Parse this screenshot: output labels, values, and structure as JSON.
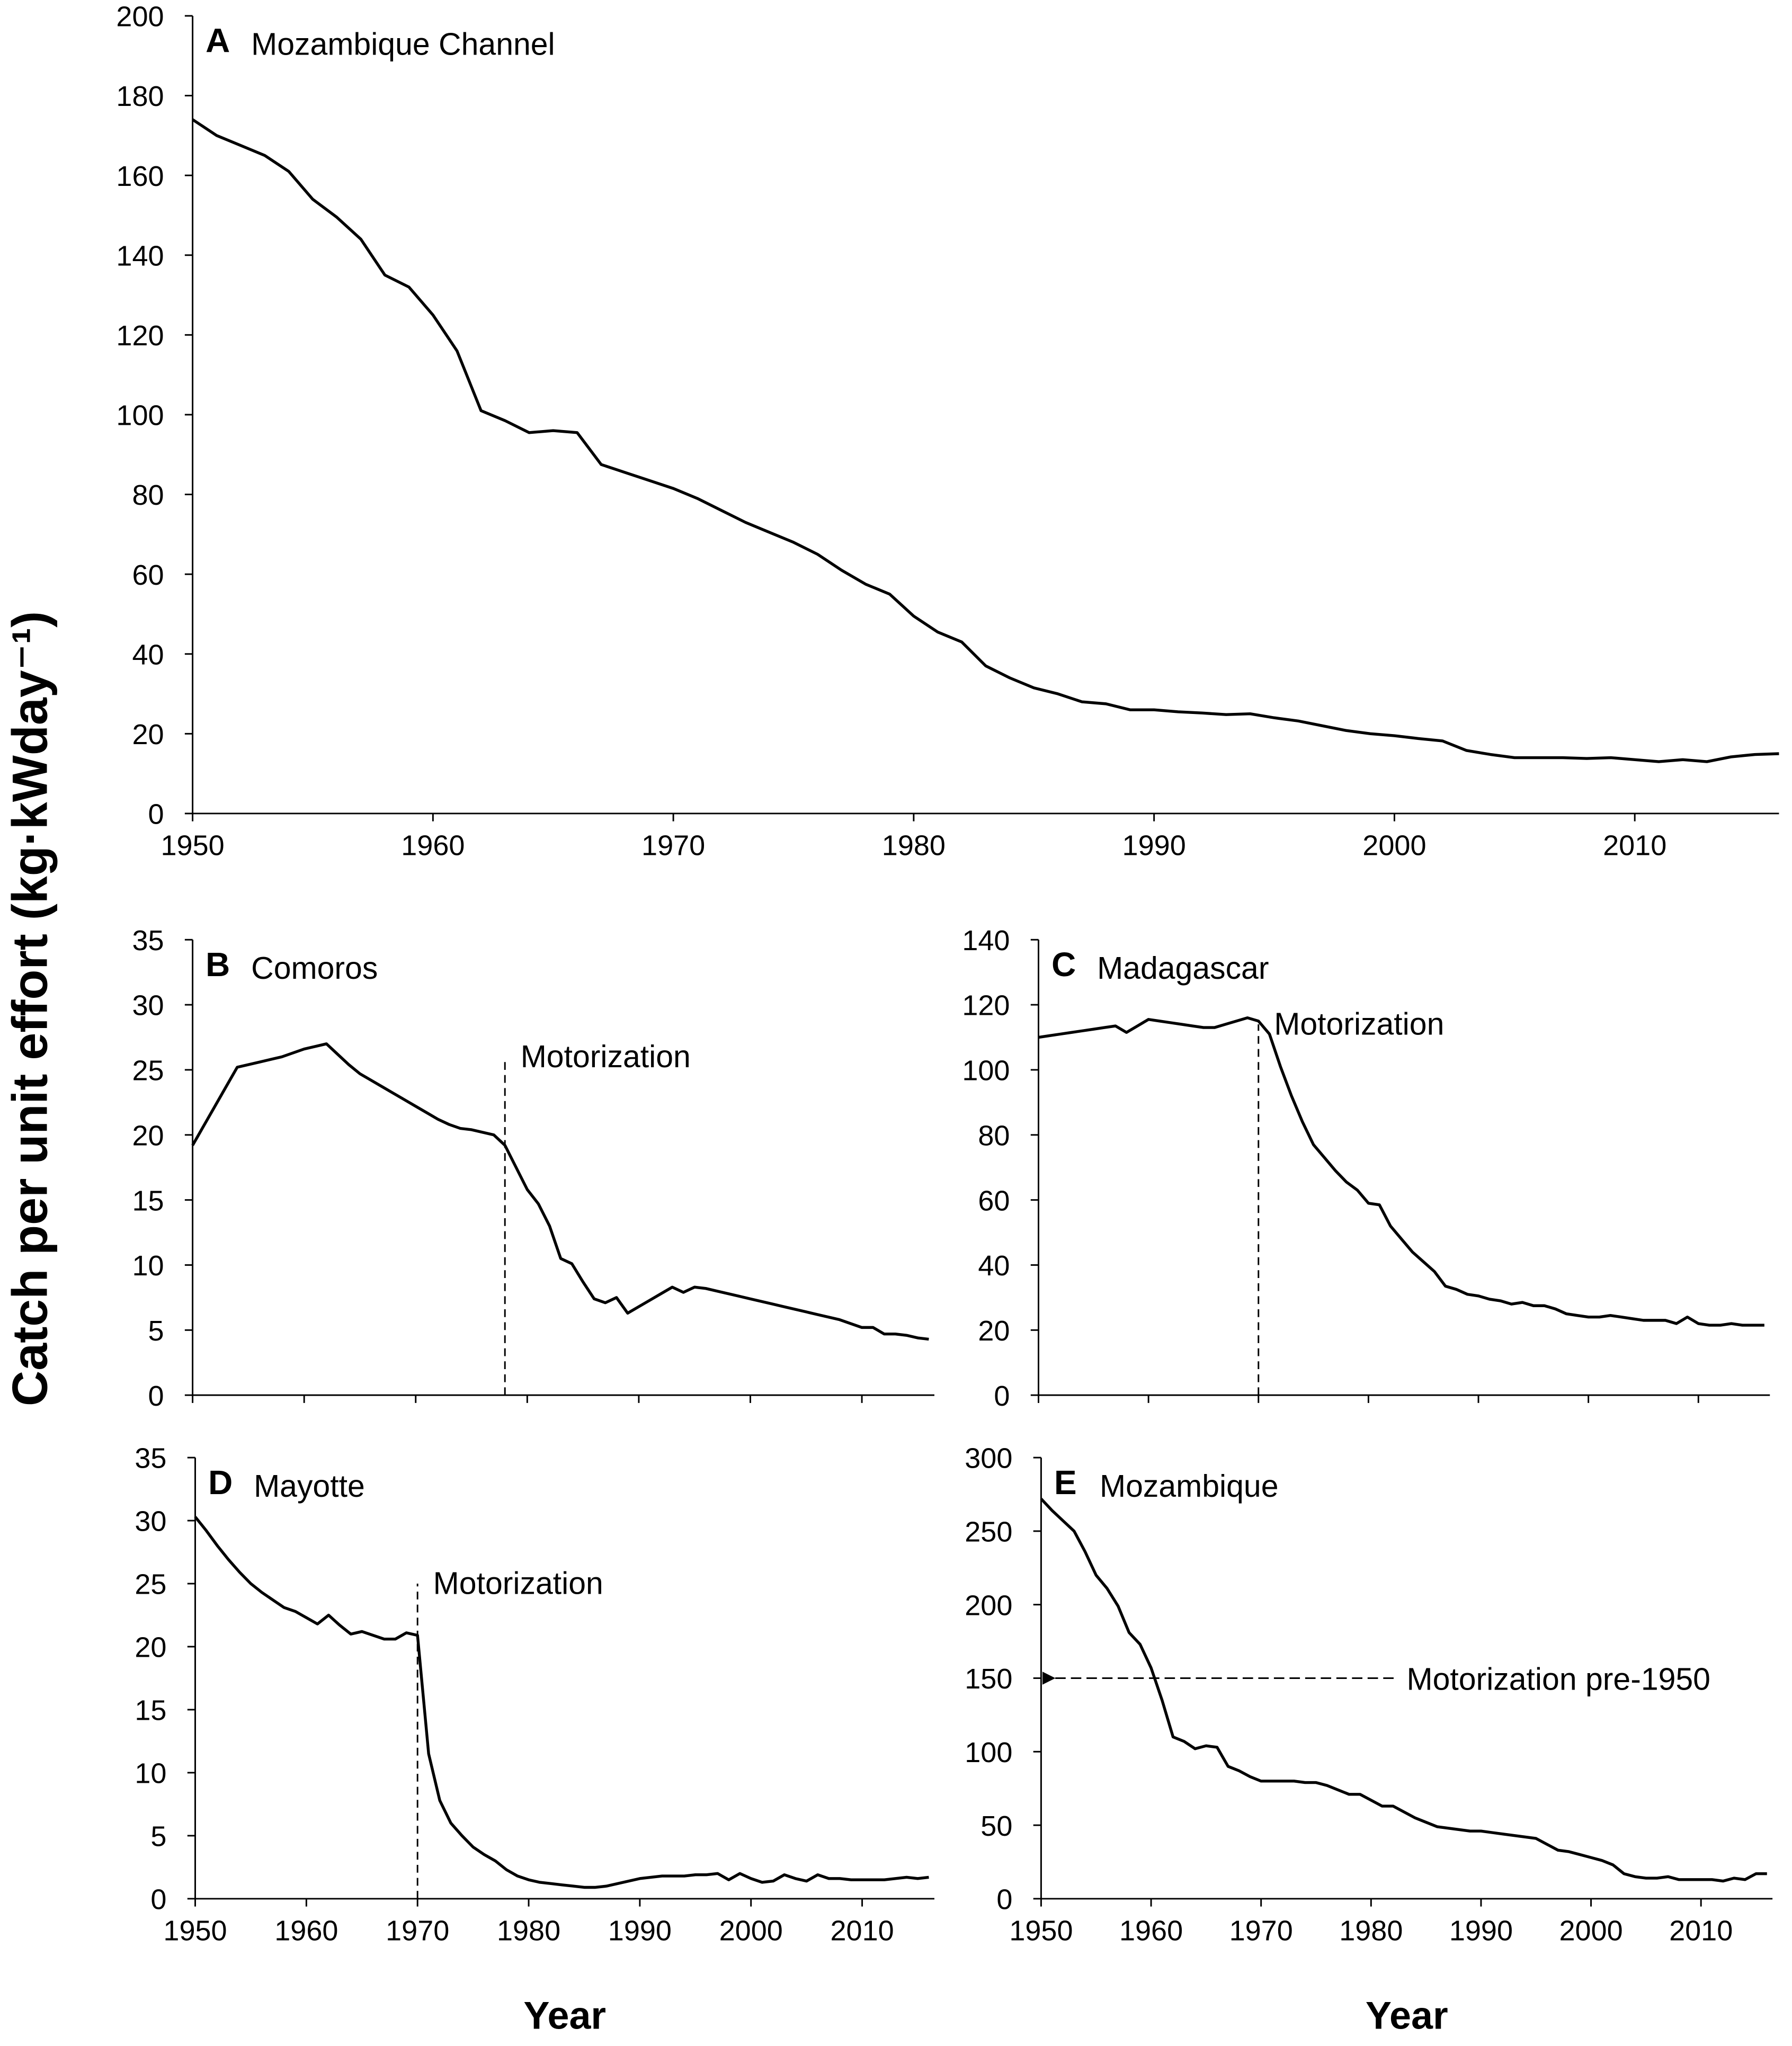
{
  "ylabel": "Catch per unit effort (kg·kWday⁻¹)",
  "chart_data": [
    {
      "type": "line",
      "panel": "A",
      "title": "Mozambique Channel",
      "x": [
        1950,
        1951,
        1952,
        1953,
        1954,
        1955,
        1956,
        1957,
        1958,
        1959,
        1960,
        1961,
        1962,
        1963,
        1964,
        1965,
        1966,
        1967,
        1968,
        1969,
        1970,
        1971,
        1972,
        1973,
        1974,
        1975,
        1976,
        1977,
        1978,
        1979,
        1980,
        1981,
        1982,
        1983,
        1984,
        1985,
        1986,
        1987,
        1988,
        1989,
        1990,
        1991,
        1992,
        1993,
        1994,
        1995,
        1996,
        1997,
        1998,
        1999,
        2000,
        2001,
        2002,
        2003,
        2004,
        2005,
        2006,
        2007,
        2008,
        2009,
        2010,
        2011,
        2012,
        2013,
        2014,
        2015,
        2016
      ],
      "values": [
        174,
        170,
        167.5,
        165,
        161,
        154,
        149.5,
        144,
        135,
        132,
        125,
        116,
        101,
        98.5,
        95.5,
        96,
        95.5,
        87.5,
        85.5,
        83.5,
        81.5,
        79,
        76,
        73,
        70.5,
        68,
        65,
        61,
        57.5,
        55,
        49.5,
        45.5,
        43,
        37,
        34,
        31.5,
        30,
        28,
        27.5,
        26,
        26,
        25.5,
        25.2,
        24.8,
        25,
        24,
        23.2,
        22,
        20.8,
        20,
        19.5,
        18.8,
        18.2,
        15.8,
        14.8,
        14,
        14,
        14,
        13.8,
        14,
        13.5,
        13,
        13.5,
        13,
        14.2,
        14.8,
        15
      ],
      "color": "#000000",
      "xlim": [
        1950,
        2016
      ],
      "ylim": [
        0,
        200
      ],
      "xticks": [
        1950,
        1960,
        1970,
        1980,
        1990,
        2000,
        2010
      ],
      "show_xtick_labels": true,
      "yticks": [
        0,
        20,
        40,
        60,
        80,
        100,
        120,
        140,
        160,
        180,
        200
      ]
    },
    {
      "type": "line",
      "panel": "B",
      "title": "Comoros",
      "x": [
        1950,
        1951,
        1952,
        1953,
        1954,
        1955,
        1956,
        1957,
        1958,
        1959,
        1960,
        1961,
        1962,
        1963,
        1964,
        1965,
        1966,
        1967,
        1968,
        1969,
        1970,
        1971,
        1972,
        1973,
        1974,
        1975,
        1976,
        1977,
        1978,
        1979,
        1980,
        1981,
        1982,
        1983,
        1984,
        1985,
        1986,
        1987,
        1988,
        1989,
        1990,
        1991,
        1992,
        1993,
        1994,
        1995,
        1996,
        1997,
        1998,
        1999,
        2000,
        2001,
        2002,
        2003,
        2004,
        2005,
        2006,
        2007,
        2008,
        2009,
        2010,
        2011,
        2012,
        2013,
        2014,
        2015,
        2016
      ],
      "values": [
        19.2,
        20.7,
        22.2,
        23.7,
        25.2,
        25.4,
        25.6,
        25.8,
        26,
        26.3,
        26.6,
        26.8,
        27,
        26.2,
        25.4,
        24.7,
        24.2,
        23.7,
        23.2,
        22.7,
        22.2,
        21.7,
        21.2,
        20.8,
        20.5,
        20.4,
        20.2,
        20,
        19.2,
        17.5,
        15.8,
        14.7,
        13,
        10.5,
        10.1,
        8.7,
        7.4,
        7.1,
        7.5,
        6.3,
        6.8,
        7.3,
        7.8,
        8.3,
        7.9,
        8.3,
        8.2,
        8,
        7.8,
        7.6,
        7.4,
        7.2,
        7,
        6.8,
        6.6,
        6.4,
        6.2,
        6,
        5.8,
        5.5,
        5.2,
        5.2,
        4.7,
        4.7,
        4.6,
        4.4,
        4.3
      ],
      "color": "#000000",
      "xlim": [
        1950,
        2016.5
      ],
      "ylim": [
        0,
        35
      ],
      "xticks": [
        1950,
        1960,
        1970,
        1980,
        1990,
        2000,
        2010
      ],
      "show_xtick_labels": false,
      "yticks": [
        0,
        5,
        10,
        15,
        20,
        25,
        30,
        35
      ],
      "annotation": {
        "text": "Motorization",
        "x": 1978,
        "y": 26,
        "kind": "vline"
      }
    },
    {
      "type": "line",
      "panel": "C",
      "title": "Madagascar",
      "x": [
        1950,
        1951,
        1952,
        1953,
        1954,
        1955,
        1956,
        1957,
        1958,
        1959,
        1960,
        1961,
        1962,
        1963,
        1964,
        1965,
        1966,
        1967,
        1968,
        1969,
        1970,
        1971,
        1972,
        1973,
        1974,
        1975,
        1976,
        1977,
        1978,
        1979,
        1980,
        1981,
        1982,
        1983,
        1984,
        1985,
        1986,
        1987,
        1988,
        1989,
        1990,
        1991,
        1992,
        1993,
        1994,
        1995,
        1996,
        1997,
        1998,
        1999,
        2000,
        2001,
        2002,
        2003,
        2004,
        2005,
        2006,
        2007,
        2008,
        2009,
        2010,
        2011,
        2012,
        2013,
        2014,
        2015,
        2016
      ],
      "values": [
        110,
        110.5,
        111,
        111.5,
        112,
        112.5,
        113,
        113.5,
        111.5,
        113.5,
        115.5,
        115,
        114.5,
        114,
        113.5,
        113,
        113,
        114,
        115,
        116,
        115,
        111,
        101,
        92,
        84,
        77,
        73,
        69,
        65.5,
        63,
        59,
        58.5,
        52,
        48,
        44,
        41,
        38,
        33.5,
        32.5,
        31,
        30.5,
        29.5,
        29,
        28,
        28.5,
        27.5,
        27.5,
        26.5,
        25,
        24.5,
        24,
        24,
        24.5,
        24,
        23.5,
        23,
        23,
        23,
        22,
        24,
        22,
        21.5,
        21.5,
        22,
        21.5,
        21.5,
        21.5
      ],
      "color": "#000000",
      "xlim": [
        1950,
        2016.5
      ],
      "ylim": [
        0,
        140
      ],
      "xticks": [
        1950,
        1960,
        1970,
        1980,
        1990,
        2000,
        2010
      ],
      "show_xtick_labels": false,
      "yticks": [
        0,
        20,
        40,
        60,
        80,
        100,
        120,
        140
      ],
      "annotation": {
        "text": "Motorization",
        "x": 1970,
        "y": 114,
        "kind": "vline"
      }
    },
    {
      "type": "line",
      "panel": "D",
      "title": "Mayotte",
      "xlabel": "Year",
      "x": [
        1950,
        1951,
        1952,
        1953,
        1954,
        1955,
        1956,
        1957,
        1958,
        1959,
        1960,
        1961,
        1962,
        1963,
        1964,
        1965,
        1966,
        1967,
        1968,
        1969,
        1970,
        1971,
        1972,
        1973,
        1974,
        1975,
        1976,
        1977,
        1978,
        1979,
        1980,
        1981,
        1982,
        1983,
        1984,
        1985,
        1986,
        1987,
        1988,
        1989,
        1990,
        1991,
        1992,
        1993,
        1994,
        1995,
        1996,
        1997,
        1998,
        1999,
        2000,
        2001,
        2002,
        2003,
        2004,
        2005,
        2006,
        2007,
        2008,
        2009,
        2010,
        2011,
        2012,
        2013,
        2014,
        2015,
        2016
      ],
      "values": [
        30.3,
        29.2,
        28,
        26.9,
        25.9,
        25,
        24.3,
        23.7,
        23.1,
        22.8,
        22.3,
        21.8,
        22.5,
        21.7,
        21,
        21.2,
        20.9,
        20.6,
        20.6,
        21.1,
        20.9,
        11.5,
        7.8,
        6,
        5,
        4.1,
        3.5,
        3,
        2.3,
        1.8,
        1.5,
        1.3,
        1.2,
        1.1,
        1,
        0.9,
        0.9,
        1,
        1.2,
        1.4,
        1.6,
        1.7,
        1.8,
        1.8,
        1.8,
        1.9,
        1.9,
        2,
        1.5,
        2,
        1.6,
        1.3,
        1.4,
        1.9,
        1.6,
        1.4,
        1.9,
        1.6,
        1.6,
        1.5,
        1.5,
        1.5,
        1.5,
        1.6,
        1.7,
        1.6,
        1.7
      ],
      "color": "#000000",
      "xlim": [
        1950,
        2016.5
      ],
      "ylim": [
        0,
        35
      ],
      "xticks": [
        1950,
        1960,
        1970,
        1980,
        1990,
        2000,
        2010
      ],
      "show_xtick_labels": true,
      "yticks": [
        0,
        5,
        10,
        15,
        20,
        25,
        30,
        35
      ],
      "annotation": {
        "text": "Motorization",
        "x": 1970,
        "y": 25,
        "kind": "vline"
      }
    },
    {
      "type": "line",
      "panel": "E",
      "title": "Mozambique",
      "xlabel": "Year",
      "x": [
        1950,
        1951,
        1952,
        1953,
        1954,
        1955,
        1956,
        1957,
        1958,
        1959,
        1960,
        1961,
        1962,
        1963,
        1964,
        1965,
        1966,
        1967,
        1968,
        1969,
        1970,
        1971,
        1972,
        1973,
        1974,
        1975,
        1976,
        1977,
        1978,
        1979,
        1980,
        1981,
        1982,
        1983,
        1984,
        1985,
        1986,
        1987,
        1988,
        1989,
        1990,
        1991,
        1992,
        1993,
        1994,
        1995,
        1996,
        1997,
        1998,
        1999,
        2000,
        2001,
        2002,
        2003,
        2004,
        2005,
        2006,
        2007,
        2008,
        2009,
        2010,
        2011,
        2012,
        2013,
        2014,
        2015,
        2016
      ],
      "values": [
        272,
        264,
        257,
        250,
        236,
        220,
        211,
        199,
        181,
        173,
        157,
        135,
        110,
        107,
        102,
        104,
        103,
        90,
        87,
        83,
        80,
        80,
        80,
        80,
        79,
        79,
        77,
        74,
        71,
        71,
        67,
        63,
        63,
        59,
        55,
        52,
        49,
        48,
        47,
        46,
        46,
        45,
        44,
        43,
        42,
        41,
        37,
        33,
        32,
        30,
        28,
        26,
        23,
        17,
        15,
        14,
        14,
        15,
        13,
        13,
        13,
        13,
        12,
        14,
        13,
        17,
        17
      ],
      "color": "#000000",
      "xlim": [
        1950,
        2016.5
      ],
      "ylim": [
        0,
        300
      ],
      "xticks": [
        1950,
        1960,
        1970,
        1980,
        1990,
        2000,
        2010
      ],
      "show_xtick_labels": true,
      "yticks": [
        0,
        50,
        100,
        150,
        200,
        250,
        300
      ],
      "annotation": {
        "text": "Motorization pre-1950",
        "x": 1983,
        "y": 150,
        "kind": "arrow"
      }
    }
  ]
}
